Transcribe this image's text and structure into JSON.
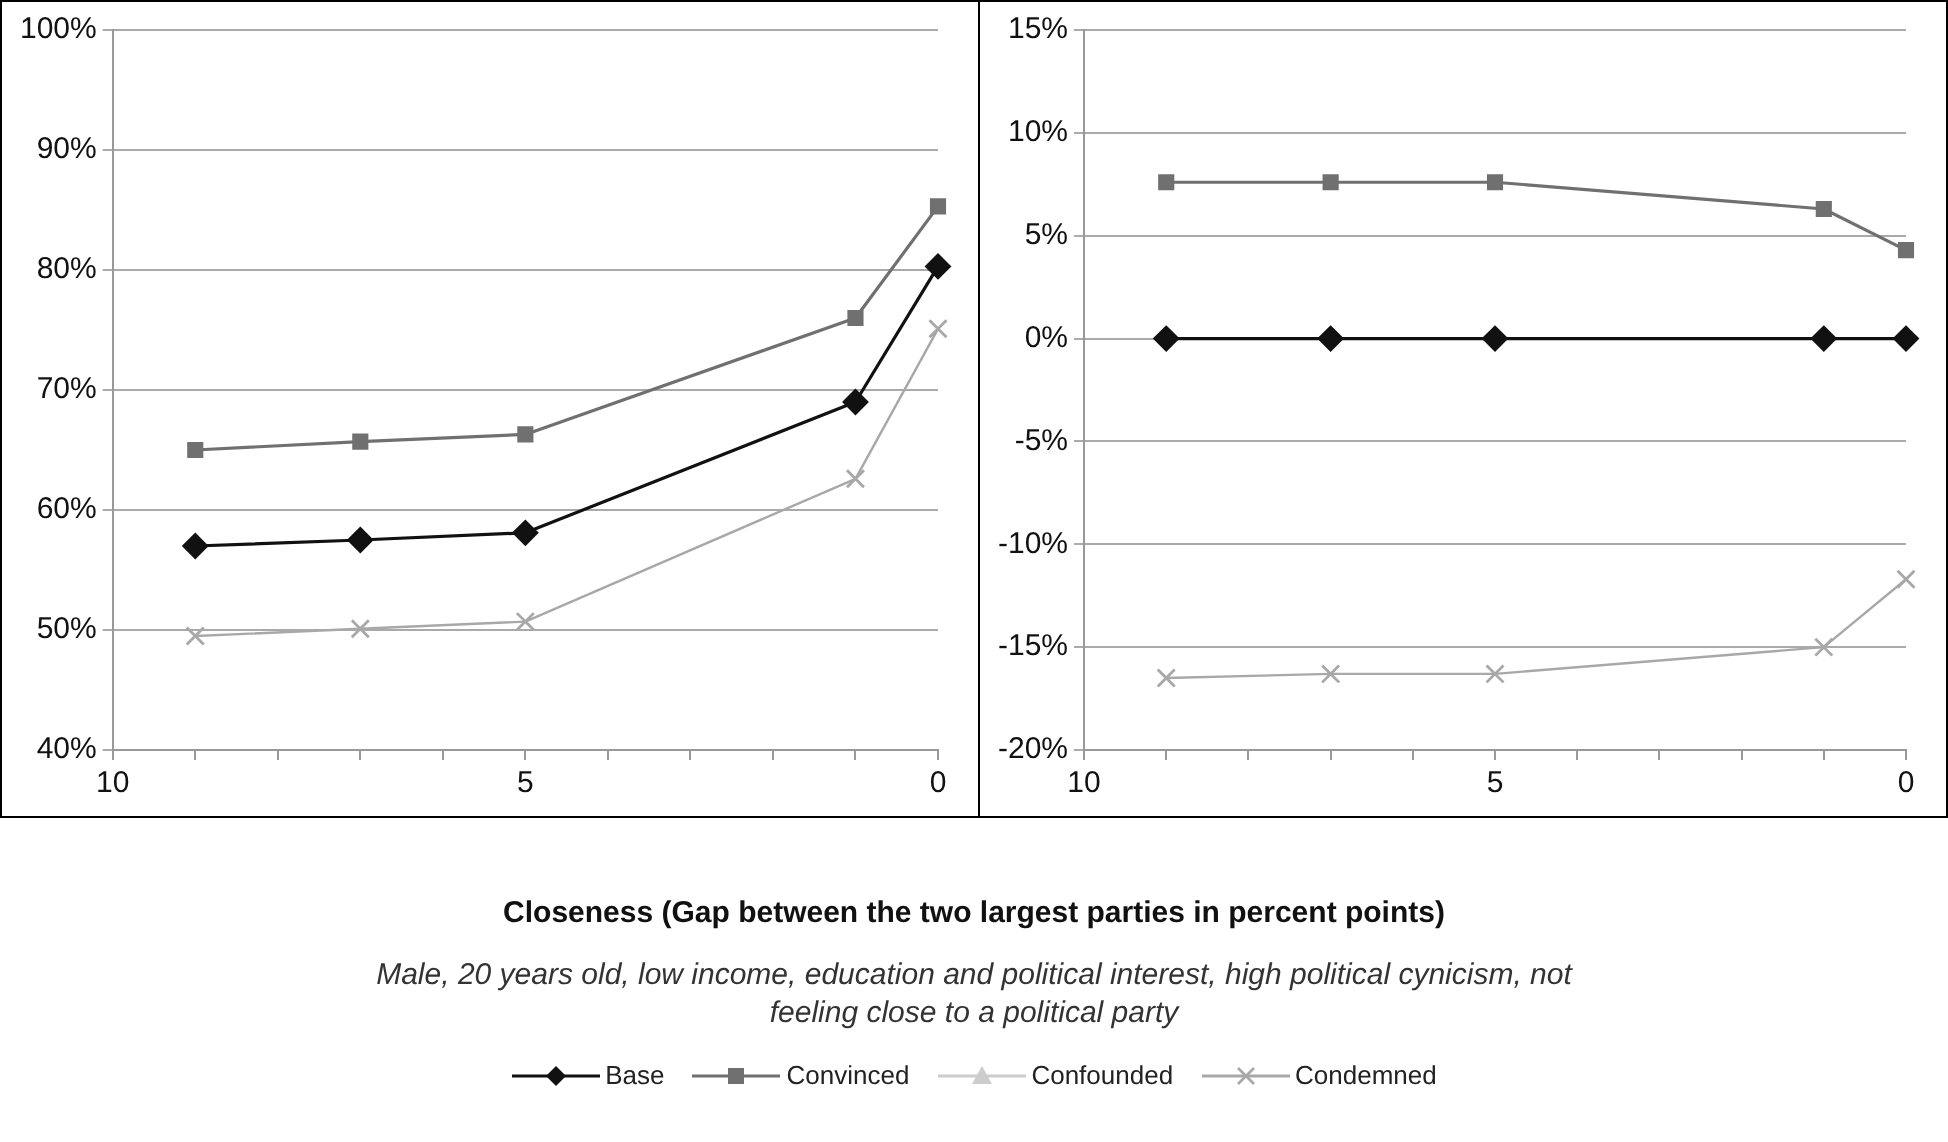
{
  "chart_data": [
    {
      "type": "line",
      "xlabel": "Closeness (Gap between the two largest parties in percent points)",
      "annotations": [
        "Male, 20 years old, low income, education and political interest, high political cynicism, not feeling close to a political party"
      ],
      "x": [
        9,
        7,
        5,
        1,
        0
      ],
      "xlim": [
        10,
        0
      ],
      "xticks": [
        10,
        {
          "value": 9,
          "label": null
        },
        {
          "value": 8,
          "label": null
        },
        {
          "value": 7,
          "label": null
        },
        {
          "value": 6,
          "label": null
        },
        5,
        {
          "value": 4,
          "label": null
        },
        {
          "value": 3,
          "label": null
        },
        {
          "value": 2,
          "label": null
        },
        {
          "value": 1,
          "label": null
        },
        0
      ],
      "ylim": [
        40,
        100
      ],
      "yticks": [
        {
          "value": 40,
          "label": "40%"
        },
        {
          "value": 50,
          "label": "50%"
        },
        {
          "value": 60,
          "label": "60%"
        },
        {
          "value": 70,
          "label": "70%"
        },
        {
          "value": 80,
          "label": "80%"
        },
        {
          "value": 90,
          "label": "90%"
        },
        {
          "value": 100,
          "label": "100%"
        }
      ],
      "grid": "y",
      "legend": "bottom",
      "series": [
        {
          "name": "Base",
          "color": "#111111",
          "marker": "diamond",
          "values": [
            57.0,
            57.5,
            58.1,
            69.0,
            80.3
          ]
        },
        {
          "name": "Convinced",
          "color": "#707070",
          "marker": "square",
          "values": [
            65.0,
            65.7,
            66.3,
            76.0,
            85.3
          ]
        },
        {
          "name": "Confounded",
          "color": "#cccccc",
          "marker": "triangle",
          "values": [
            null,
            null,
            null,
            null,
            null
          ]
        },
        {
          "name": "Condemned",
          "color": "#a8a8a8",
          "marker": "cross",
          "values": [
            49.5,
            50.1,
            50.7,
            62.6,
            75.1
          ]
        }
      ]
    },
    {
      "type": "line",
      "x": [
        9,
        7,
        5,
        1,
        0
      ],
      "xlim": [
        10,
        0
      ],
      "xticks": [
        10,
        {
          "value": 9,
          "label": null
        },
        {
          "value": 8,
          "label": null
        },
        {
          "value": 7,
          "label": null
        },
        {
          "value": 6,
          "label": null
        },
        5,
        {
          "value": 4,
          "label": null
        },
        {
          "value": 3,
          "label": null
        },
        {
          "value": 2,
          "label": null
        },
        {
          "value": 1,
          "label": null
        },
        0
      ],
      "ylim": [
        -20,
        15
      ],
      "yticks": [
        {
          "value": -20,
          "label": "-20%"
        },
        {
          "value": -15,
          "label": "-15%"
        },
        {
          "value": -10,
          "label": "-10%"
        },
        {
          "value": -5,
          "label": "-5%"
        },
        {
          "value": 0,
          "label": "0%"
        },
        {
          "value": 5,
          "label": "5%"
        },
        {
          "value": 10,
          "label": "10%"
        },
        {
          "value": 15,
          "label": "15%"
        }
      ],
      "grid": "y",
      "series": [
        {
          "color": "#111111",
          "marker": "diamond",
          "values": [
            0,
            0,
            0,
            0,
            0
          ]
        },
        {
          "color": "#707070",
          "marker": "square",
          "values": [
            7.6,
            7.6,
            7.6,
            6.3,
            4.3
          ]
        },
        {
          "color": "#a8a8a8",
          "marker": "cross",
          "values": [
            -16.5,
            -16.3,
            -16.3,
            -15.0,
            -11.7
          ]
        }
      ]
    }
  ]
}
